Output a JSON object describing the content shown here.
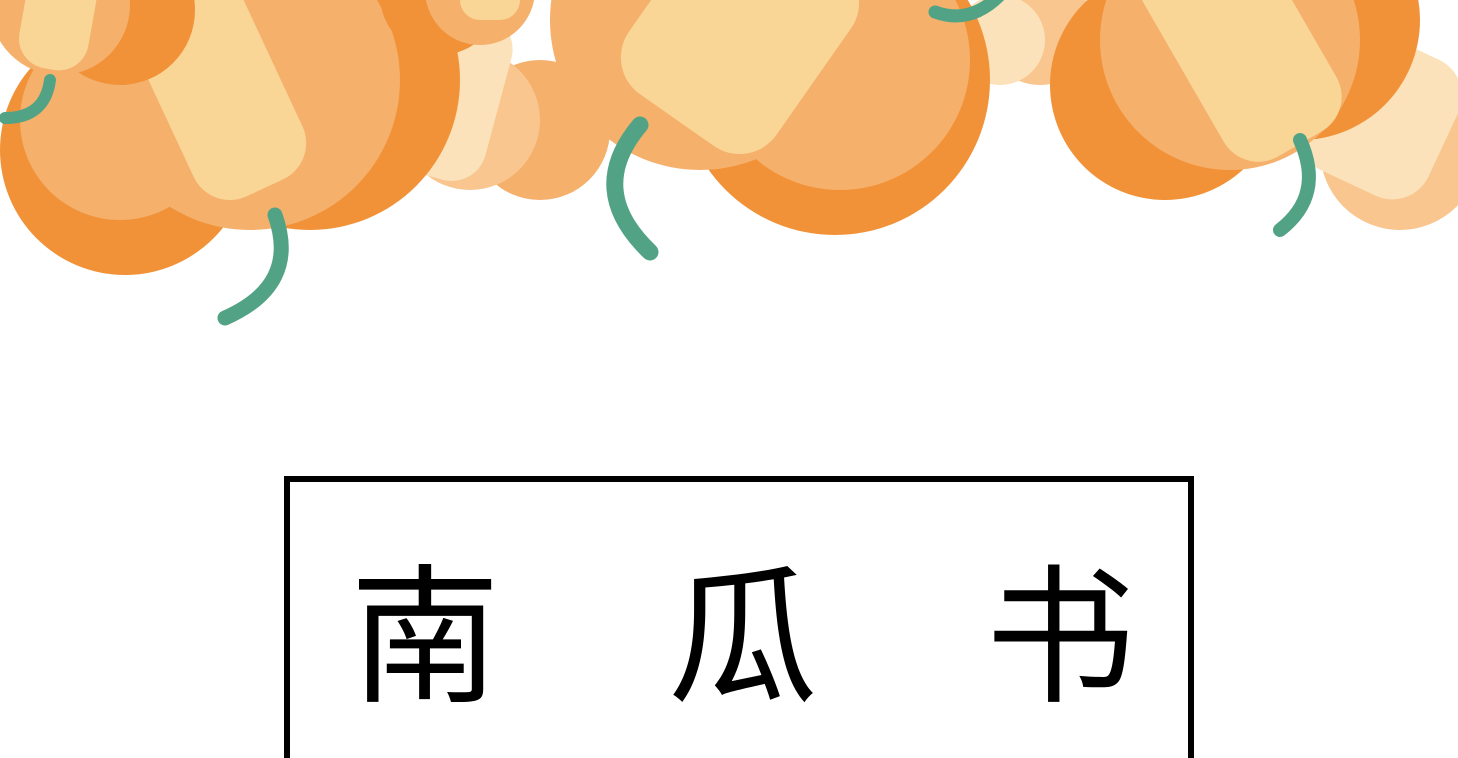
{
  "cover": {
    "title": "南 瓜 书"
  },
  "decoration": {
    "icon": "pumpkin-icon",
    "colors": {
      "pumpkin_dark": "#F19239",
      "pumpkin_mid": "#F5B06C",
      "pumpkin_light": "#F8C68E",
      "highlight": "#F9D596",
      "pale": "#FBE2BA",
      "stem": "#52A385",
      "frame": "#000000"
    }
  }
}
